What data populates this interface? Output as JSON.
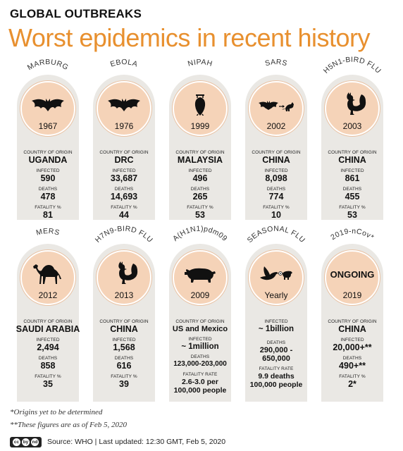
{
  "header": {
    "kicker": "GLOBAL OUTBREAKS",
    "title": "Worst epidemics in recent history"
  },
  "labels": {
    "country": "COUNTRY OF ORIGIN",
    "infected": "INFECTED",
    "deaths": "DEATHS",
    "fatality_pct": "FATALITY %",
    "fatality_rate": "FATALITY RATE"
  },
  "epidemics": [
    {
      "name": "MARBURG",
      "year": "1967",
      "icon": "bat-icon",
      "country": "UGANDA",
      "infected": "590",
      "deaths": "478",
      "fatality": "81"
    },
    {
      "name": "EBOLA",
      "year": "1976",
      "icon": "bat-icon",
      "country": "DRC",
      "infected": "33,687",
      "deaths": "14,693",
      "fatality": "44"
    },
    {
      "name": "NIPAH",
      "year": "1999",
      "icon": "hanging-bat-icon",
      "country": "MALAYSIA",
      "infected": "496",
      "deaths": "265",
      "fatality": "53"
    },
    {
      "name": "SARS",
      "year": "2002",
      "icon": "bat-civet-icon",
      "country": "CHINA",
      "infected": "8,098",
      "deaths": "774",
      "fatality": "10"
    },
    {
      "name": "H5N1-BIRD FLU",
      "year": "2003",
      "icon": "rooster-icon",
      "country": "CHINA",
      "infected": "861",
      "deaths": "455",
      "fatality": "53"
    },
    {
      "name": "MERS",
      "year": "2012",
      "icon": "camel-icon",
      "country": "SAUDI ARABIA",
      "infected": "2,494",
      "deaths": "858",
      "fatality": "35"
    },
    {
      "name": "H7N9-BIRD FLU",
      "year": "2013",
      "icon": "rooster-icon",
      "country": "CHINA",
      "infected": "1,568",
      "deaths": "616",
      "fatality": "39"
    },
    {
      "name": "A(H1N1)pdm09",
      "year": "2009",
      "icon": "pig-icon",
      "country": "US and Mexico",
      "infected": "~ 1million",
      "deaths": "123,000-203,000",
      "fatality": "2.6-3.0 per 100,000 people"
    },
    {
      "name": "SEASONAL FLU",
      "year": "Yearly",
      "icon": "bird-pig-icon",
      "infected": "~ 1billion",
      "deaths": "290,000 - 650,000",
      "fatality": "9.9 deaths 100,000 people"
    },
    {
      "name": "2019-nCov*",
      "year": "2019",
      "status": "ONGOING",
      "country": "CHINA",
      "infected": "20,000+**",
      "deaths": "490+**",
      "fatality": "2*"
    }
  ],
  "footnotes": {
    "origin": "*Origins yet to be determined",
    "date": "**These figures are as of Feb 5, 2020"
  },
  "footer": {
    "license_icons": [
      "cc",
      "by",
      "nd"
    ],
    "text": "Source: WHO  |  Last updated: 12:30 GMT, Feb 5, 2020"
  },
  "colors": {
    "title_orange": "#e8902f",
    "circle_fill": "#f5d3b8",
    "card_bg": "#eae8e4"
  }
}
